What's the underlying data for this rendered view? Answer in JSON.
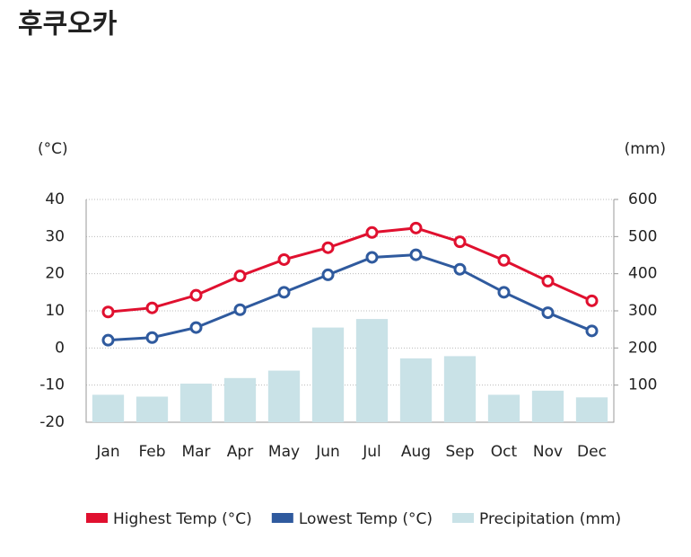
{
  "chart_data": {
    "type": "line",
    "title": "후쿠오카",
    "y_label": "(°C)",
    "y2_label": "(mm)",
    "categories": [
      "Jan",
      "Feb",
      "Mar",
      "Apr",
      "May",
      "Jun",
      "Jul",
      "Aug",
      "Sep",
      "Oct",
      "Nov",
      "Dec"
    ],
    "series": [
      {
        "name": "Highest Temp (°C)",
        "type": "line",
        "color": "#e0102f",
        "values": [
          9.7,
          10.8,
          14.2,
          19.4,
          23.8,
          27,
          31.1,
          32.3,
          28.6,
          23.6,
          18,
          12.7
        ]
      },
      {
        "name": "Lowest Temp (°C)",
        "type": "line",
        "color": "#2f5a9e",
        "values": [
          2.1,
          2.8,
          5.5,
          10.3,
          15,
          19.7,
          24.4,
          25.1,
          21.2,
          15,
          9.5,
          4.6
        ]
      },
      {
        "name": "Precipitation (mm)",
        "type": "bar",
        "axis": "y2",
        "color": "#c9e2e7",
        "values": [
          74,
          69,
          104,
          119,
          139,
          255,
          278,
          172,
          178,
          74,
          85,
          67
        ]
      }
    ],
    "ylim": [
      -20,
      40
    ],
    "yticks": [
      -20,
      -10,
      0,
      10,
      20,
      30,
      40
    ],
    "y2lim": [
      0,
      600
    ],
    "y2ticks": [
      100,
      200,
      300,
      400,
      500,
      600
    ],
    "grid": true,
    "legend": "bottom"
  }
}
